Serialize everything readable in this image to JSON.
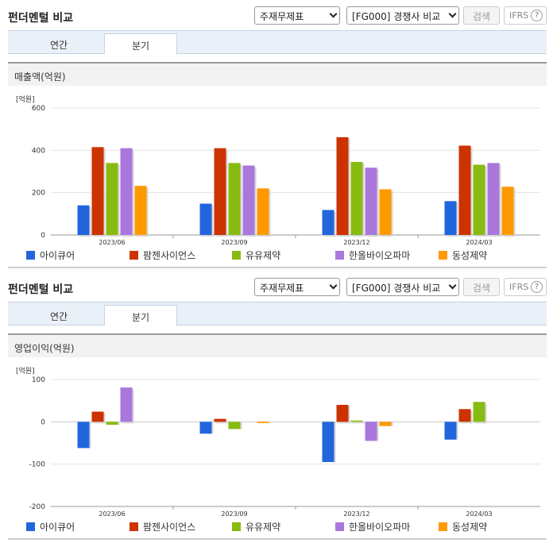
{
  "colors": {
    "series": [
      "#2266dd",
      "#cc3300",
      "#88bb11",
      "#aa77dd",
      "#ff9900"
    ]
  },
  "panels": [
    {
      "title": "펀더멘털 비교",
      "select_statement": "주재무제표",
      "select_group": "[FG000] 경쟁사 비교",
      "search_label": "검색",
      "ifrs_label": "IFRS",
      "help_label": "?",
      "tabs": [
        "연간",
        "분기"
      ],
      "active_tab": 1,
      "subtitle": "매출액(억원)",
      "unit": "[억원]"
    },
    {
      "title": "펀더멘털 비교",
      "select_statement": "주재무제표",
      "select_group": "[FG000] 경쟁사 비교",
      "search_label": "검색",
      "ifrs_label": "IFRS",
      "help_label": "?",
      "tabs": [
        "연간",
        "분기"
      ],
      "active_tab": 1,
      "subtitle": "영업이익(억원)",
      "unit": "[억원]"
    }
  ],
  "chart_data": [
    {
      "type": "bar",
      "title": "매출액(억원)",
      "ylabel": "[억원]",
      "categories": [
        "2023/06",
        "2023/09",
        "2023/12",
        "2024/03"
      ],
      "ylim": [
        0,
        600
      ],
      "yticks": [
        0,
        200,
        400,
        600
      ],
      "series": [
        {
          "name": "아이큐어",
          "values": [
            140,
            148,
            118,
            160
          ]
        },
        {
          "name": "팜젠사이언스",
          "values": [
            415,
            410,
            462,
            422
          ]
        },
        {
          "name": "유유제약",
          "values": [
            340,
            340,
            345,
            332
          ]
        },
        {
          "name": "한올바이오파마",
          "values": [
            410,
            328,
            318,
            340
          ]
        },
        {
          "name": "동성제약",
          "values": [
            232,
            220,
            216,
            228
          ]
        }
      ],
      "legend": "bottom",
      "grid": true
    },
    {
      "type": "bar",
      "title": "영업이익(억원)",
      "ylabel": "[억원]",
      "categories": [
        "2023/06",
        "2023/09",
        "2023/12",
        "2024/03"
      ],
      "ylim": [
        -200,
        100
      ],
      "yticks": [
        -200,
        -100,
        0,
        100
      ],
      "series": [
        {
          "name": "아이큐어",
          "values": [
            -62,
            -28,
            -95,
            -42
          ]
        },
        {
          "name": "팜젠사이언스",
          "values": [
            24,
            7,
            40,
            30
          ]
        },
        {
          "name": "유유제약",
          "values": [
            -7,
            -17,
            3,
            47
          ]
        },
        {
          "name": "한올바이오파마",
          "values": [
            81,
            null,
            -45,
            null
          ]
        },
        {
          "name": "동성제약",
          "values": [
            null,
            -3,
            -10,
            null
          ]
        }
      ],
      "legend": "bottom",
      "grid": true
    }
  ]
}
